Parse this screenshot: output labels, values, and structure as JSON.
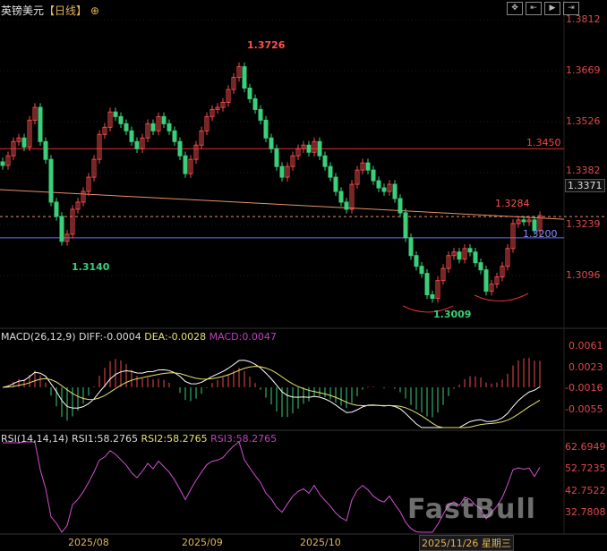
{
  "header": {
    "symbol": "英镑美元",
    "timeframe": "【日线】",
    "add_icon": "plus-circle-icon"
  },
  "toolbar": [
    {
      "icon": "crosshair-icon"
    },
    {
      "icon": "fit-range-icon"
    },
    {
      "icon": "play-forward-icon"
    },
    {
      "icon": "go-latest-icon"
    }
  ],
  "price_axis": [
    "1.3812",
    "1.3669",
    "1.3526",
    "1.3382",
    "1.3239",
    "1.3096"
  ],
  "crosshair_price": "1.3371",
  "annotations": {
    "high": "1.3726",
    "low1": "1.3140",
    "low2": "1.3009",
    "resistance": "1.3450",
    "level1": "1.3284",
    "support": "1.3200"
  },
  "macd": {
    "label": "MACD(26,12,9)",
    "diff": "DIFF:-0.0004",
    "dea": "DEA:-0.0028",
    "macd": "MACD:0.0047",
    "axis": [
      "0.0061",
      "0.0023",
      "-0.0016",
      "-0.0055"
    ]
  },
  "rsi": {
    "label": "RSI(14,14,14)",
    "rsi1": "RSI1:58.2765",
    "rsi2": "RSI2:58.2765",
    "rsi3": "RSI3:58.2765",
    "axis": [
      "62.6949",
      "52.7235",
      "42.7522",
      "32.7808"
    ]
  },
  "date_axis": [
    "2025/08",
    "2025/09",
    "2025/10"
  ],
  "selected_date": "2025/11/26 星期三",
  "watermark": "FastBull FX678",
  "colors": {
    "up": "#f04a4a",
    "down": "#3ccf7a",
    "resistance": "#e03030",
    "support": "#6a6aff",
    "trend": "#e8906a",
    "diff": "#ffffff",
    "dea": "#e8e070",
    "rsi": "#d050d0"
  },
  "chart_data": {
    "type": "candlestick",
    "symbol": "GBP/USD",
    "ylim": [
      1.299,
      1.383
    ],
    "closes": [
      1.3403,
      1.343,
      1.347,
      1.348,
      1.3455,
      1.353,
      1.3566,
      1.347,
      1.342,
      1.33,
      1.326,
      1.319,
      1.321,
      1.328,
      1.33,
      1.333,
      1.337,
      1.342,
      1.349,
      1.351,
      1.3553,
      1.354,
      1.352,
      1.35,
      1.347,
      1.345,
      1.348,
      1.352,
      1.35,
      1.354,
      1.352,
      1.35,
      1.347,
      1.343,
      1.338,
      1.342,
      1.346,
      1.35,
      1.354,
      1.356,
      1.3566,
      1.358,
      1.3616,
      1.365,
      1.368,
      1.362,
      1.359,
      1.356,
      1.353,
      1.348,
      1.345,
      1.34,
      1.337,
      1.34,
      1.343,
      1.345,
      1.346,
      1.344,
      1.347,
      1.343,
      1.34,
      1.337,
      1.333,
      1.33,
      1.328,
      1.335,
      1.339,
      1.341,
      1.339,
      1.336,
      1.334,
      1.333,
      1.335,
      1.331,
      1.327,
      1.32,
      1.315,
      1.312,
      1.31,
      1.304,
      1.303,
      1.308,
      1.3114,
      1.315,
      1.316,
      1.314,
      1.317,
      1.316,
      1.313,
      1.311,
      1.305,
      1.307,
      1.309,
      1.312,
      1.317,
      1.324,
      1.325,
      1.3245,
      1.325,
      1.322,
      1.3262
    ],
    "horizontal_levels": [
      1.345,
      1.32
    ],
    "trendline": [
      1.3335,
      1.3252
    ],
    "macd_range": [
      -0.0075,
      0.0075
    ],
    "rsi_range": [
      25,
      70
    ]
  }
}
